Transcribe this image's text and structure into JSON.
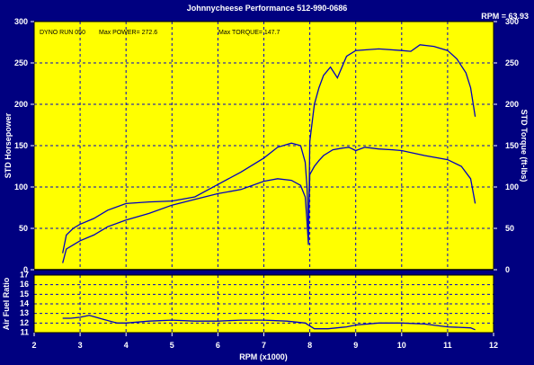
{
  "chart_data": [
    {
      "type": "line",
      "title": "Johnnycheese Performance 512-990-0686",
      "readout": "RPM = 63.93",
      "annotations": {
        "run": "DYNO RUN 050",
        "max_power": "Max POWER= 272.6",
        "max_torque": "Max TORQUE= 147.7"
      },
      "xlim": [
        2,
        12
      ],
      "xticks": [
        2,
        3,
        4,
        5,
        6,
        7,
        8,
        9,
        10,
        11,
        12
      ],
      "ylabel": "STD Horsepower",
      "ylabel_right": "STD Torque (ft-lbs)",
      "ylim": [
        0,
        300
      ],
      "yticks": [
        0,
        50,
        100,
        150,
        200,
        250,
        300
      ],
      "grid": true,
      "series": [
        {
          "color": "#0000c0",
          "x": [
            2.62,
            2.7,
            2.85,
            3.0,
            3.3,
            3.6,
            4.0,
            4.5,
            5.0,
            5.5,
            6.0,
            6.5,
            7.0,
            7.3,
            7.6,
            7.8,
            7.9,
            7.94,
            7.97,
            8.0,
            8.1,
            8.2,
            8.3,
            8.45,
            8.6,
            8.8,
            9.0,
            9.5,
            10.0,
            10.2,
            10.4,
            10.7,
            11.0,
            11.2,
            11.4,
            11.5,
            11.6
          ],
          "y": [
            8,
            25,
            30,
            35,
            42,
            52,
            60,
            68,
            78,
            85,
            92,
            97,
            107,
            110,
            108,
            102,
            88,
            58,
            30,
            155,
            200,
            220,
            235,
            245,
            232,
            258,
            265,
            267,
            265,
            264,
            272,
            270,
            265,
            255,
            238,
            220,
            185
          ]
        },
        {
          "color": "#0000c0",
          "x": [
            2.62,
            2.7,
            2.85,
            3.0,
            3.3,
            3.6,
            4.0,
            4.5,
            5.0,
            5.5,
            6.0,
            6.5,
            7.0,
            7.3,
            7.6,
            7.8,
            7.9,
            7.94,
            7.97,
            8.0,
            8.1,
            8.2,
            8.3,
            8.5,
            8.7,
            8.85,
            9.0,
            9.2,
            9.5,
            9.8,
            10.0,
            10.5,
            11.0,
            11.3,
            11.5,
            11.6
          ],
          "y": [
            20,
            42,
            50,
            55,
            62,
            72,
            80,
            82,
            83,
            88,
            103,
            118,
            135,
            148,
            153,
            150,
            130,
            100,
            50,
            115,
            125,
            132,
            138,
            145,
            147,
            148,
            144,
            148,
            146,
            145,
            144,
            138,
            133,
            125,
            110,
            80
          ]
        }
      ]
    },
    {
      "type": "line",
      "ylabel": "Air Fuel Ratio",
      "xlabel": "RPM (x1000)",
      "xlim": [
        2,
        12
      ],
      "ylim": [
        11,
        17
      ],
      "yticks": [
        11,
        12,
        13,
        14,
        15,
        16,
        17
      ],
      "grid": true,
      "series": [
        {
          "color": "#0000c0",
          "x": [
            2.62,
            2.8,
            3.0,
            3.2,
            3.5,
            3.8,
            4.0,
            4.5,
            5.0,
            5.5,
            6.0,
            6.5,
            7.0,
            7.5,
            7.9,
            8.1,
            8.4,
            8.8,
            9.0,
            9.5,
            10.0,
            10.5,
            11.0,
            11.5,
            11.6
          ],
          "y": [
            12.5,
            12.5,
            12.6,
            12.8,
            12.4,
            12.0,
            12.0,
            12.2,
            12.3,
            12.2,
            12.2,
            12.3,
            12.3,
            12.2,
            12.0,
            11.4,
            11.4,
            11.6,
            11.8,
            12.0,
            12.0,
            11.9,
            11.6,
            11.5,
            11.3
          ]
        }
      ]
    }
  ]
}
